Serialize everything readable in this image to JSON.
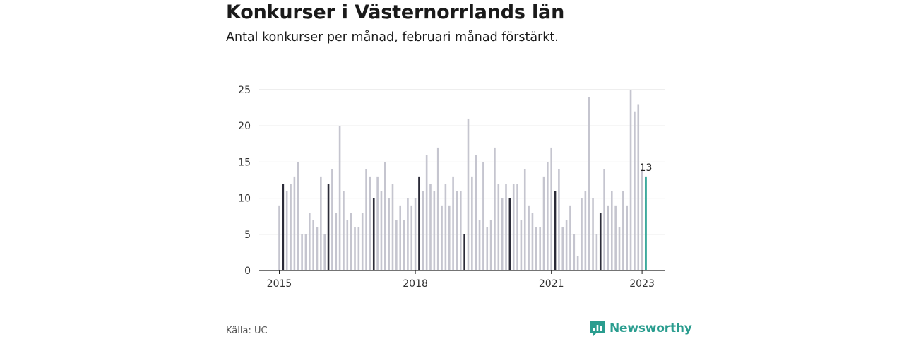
{
  "title": "Konkurser i Västernorrlands län",
  "subtitle": "Antal konkurser per månad, februari månad förstärkt.",
  "source": "Källa: UC",
  "brand": {
    "name": "Newsworthy",
    "icon": "bar-chart-icon",
    "color": "#2a9d8f"
  },
  "chart_data": {
    "type": "bar",
    "x_start": "2015-01",
    "values": [
      9,
      12,
      11,
      12,
      13,
      15,
      5,
      5,
      8,
      7,
      6,
      13,
      5,
      12,
      14,
      8,
      20,
      11,
      7,
      8,
      6,
      6,
      8,
      14,
      13,
      10,
      13,
      11,
      15,
      10,
      12,
      7,
      9,
      7,
      10,
      9,
      10,
      13,
      11,
      16,
      12,
      11,
      17,
      9,
      12,
      9,
      13,
      11,
      11,
      5,
      21,
      13,
      16,
      7,
      15,
      6,
      7,
      17,
      12,
      10,
      12,
      10,
      12,
      12,
      7,
      14,
      9,
      8,
      6,
      6,
      13,
      15,
      17,
      11,
      14,
      6,
      7,
      9,
      5,
      2,
      10,
      11,
      24,
      10,
      5,
      8,
      14,
      9,
      11,
      9,
      6,
      11,
      9,
      25,
      22,
      23,
      14,
      13
    ],
    "highlight_month": "February",
    "last_value_label": "13",
    "ylim": [
      0,
      25
    ],
    "y_ticks": [
      0,
      5,
      10,
      15,
      20,
      25
    ],
    "x_ticks": [
      {
        "label": "2015",
        "index": 0
      },
      {
        "label": "2018",
        "index": 36
      },
      {
        "label": "2021",
        "index": 72
      },
      {
        "label": "2023",
        "index": 96
      }
    ],
    "grid": true,
    "colors": {
      "bar": "#c5c5cf",
      "highlight": "#2b2b38",
      "last": "#1a9c8c",
      "grid": "#dddddd",
      "axis": "#222222"
    }
  }
}
